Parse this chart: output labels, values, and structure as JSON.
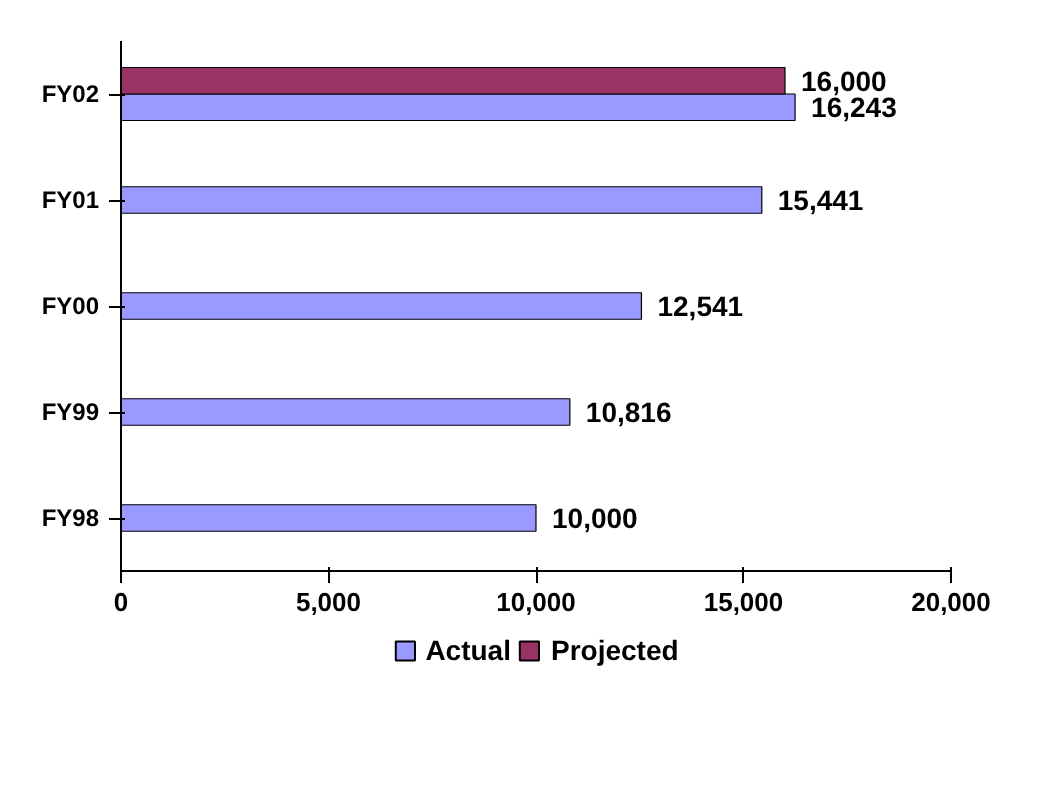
{
  "chart_data": {
    "type": "bar",
    "orientation": "horizontal",
    "categories": [
      "FY02",
      "FY01",
      "FY00",
      "FY99",
      "FY98"
    ],
    "series": [
      {
        "name": "Actual",
        "color": "#9999ff",
        "values": [
          16243,
          15441,
          12541,
          10816,
          10000
        ],
        "value_labels": [
          "16,243",
          "15,441",
          "12,541",
          "10,816",
          "10,000"
        ]
      },
      {
        "name": "Projected",
        "color": "#993366",
        "values": [
          16000,
          null,
          null,
          null,
          null
        ],
        "value_labels": [
          "16,000",
          null,
          null,
          null,
          null
        ]
      }
    ],
    "xlim": [
      0,
      20000
    ],
    "xticks": [
      0,
      {
        "value": 5000,
        "label": "5,000"
      },
      {
        "value": 10000,
        "label": "10,000"
      },
      {
        "value": 15000,
        "label": "15,000"
      },
      {
        "value": 20000,
        "label": "20,000"
      }
    ],
    "grid": false,
    "legend": "bottom"
  }
}
